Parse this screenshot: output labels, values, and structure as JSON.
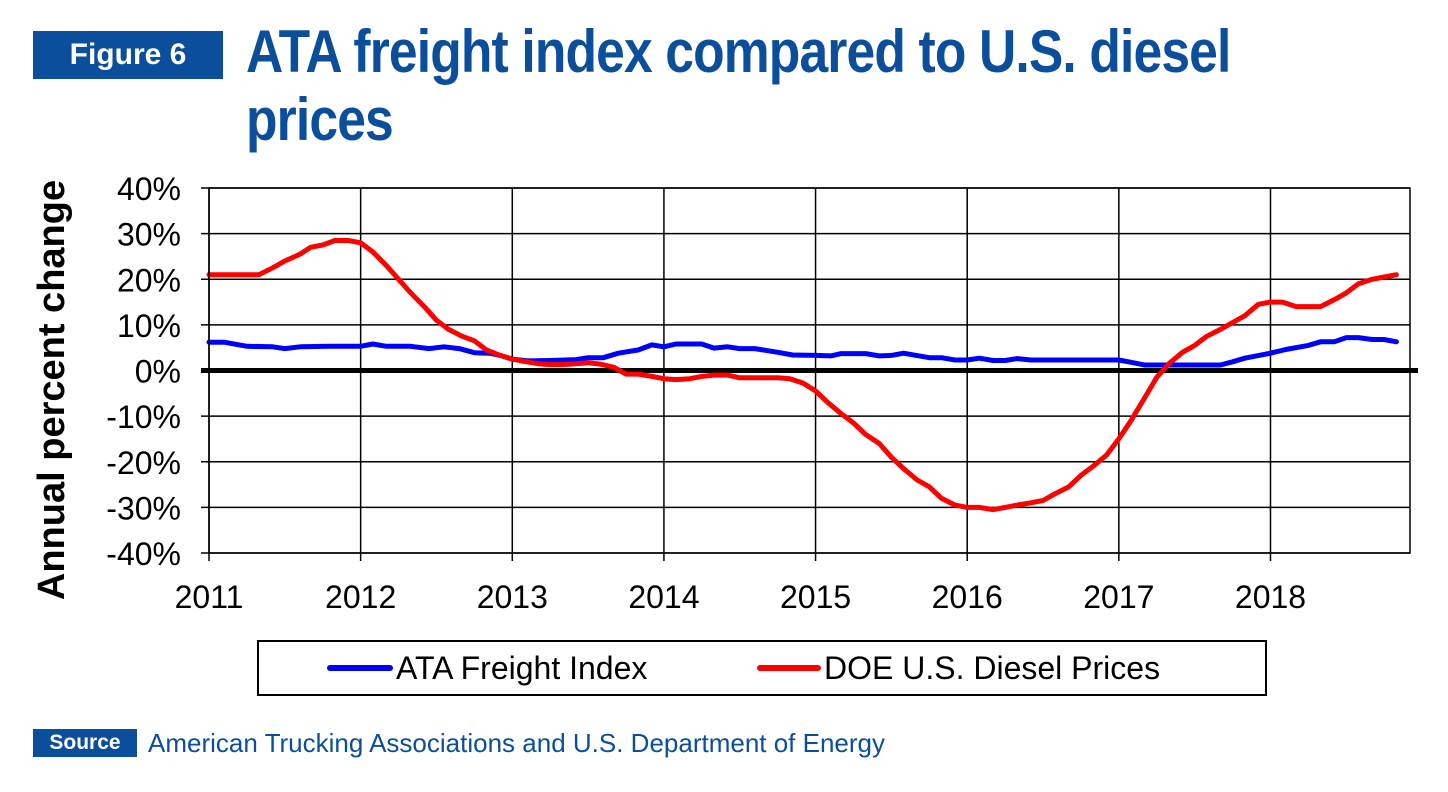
{
  "figure_label": "Figure 6",
  "title": "ATA freight index compared to U.S. diesel prices",
  "source_label": "Source",
  "source_text": "American Trucking Associations and U.S. Department of Energy",
  "colors": {
    "brand": "#0b4e9c",
    "freight": "#0000ff",
    "diesel": "#ff0000",
    "zero_line": "#000000",
    "grid": "#000000"
  },
  "chart_data": {
    "type": "line",
    "title": "",
    "xlabel": "",
    "ylabel": "Annual percent change",
    "xlim": [
      2011,
      2018.92
    ],
    "ylim": [
      -40,
      40
    ],
    "x_ticks": [
      2011,
      2012,
      2013,
      2014,
      2015,
      2016,
      2017,
      2018
    ],
    "x_tick_labels": [
      "2011",
      "2012",
      "2013",
      "2014",
      "2015",
      "2016",
      "2017",
      "2018"
    ],
    "y_ticks": [
      40,
      30,
      20,
      10,
      0,
      -10,
      -20,
      -30,
      -40
    ],
    "y_tick_labels": [
      "40%",
      "30%",
      "20%",
      "10%",
      "0%",
      "-10%",
      "-20%",
      "-30%",
      "-40%"
    ],
    "grid": true,
    "legend_position": "bottom",
    "series": [
      {
        "name": "ATA Freight Index",
        "color": "#0000ff",
        "points": [
          [
            2011.0,
            6.2
          ],
          [
            2011.1,
            6.2
          ],
          [
            2011.25,
            5.3
          ],
          [
            2011.42,
            5.2
          ],
          [
            2011.5,
            4.8
          ],
          [
            2011.6,
            5.2
          ],
          [
            2011.8,
            5.3
          ],
          [
            2012.0,
            5.3
          ],
          [
            2012.08,
            5.8
          ],
          [
            2012.17,
            5.3
          ],
          [
            2012.33,
            5.3
          ],
          [
            2012.45,
            4.8
          ],
          [
            2012.55,
            5.2
          ],
          [
            2012.65,
            4.8
          ],
          [
            2012.75,
            3.9
          ],
          [
            2012.85,
            3.8
          ],
          [
            2012.92,
            3.3
          ],
          [
            2013.0,
            2.5
          ],
          [
            2013.1,
            2.1
          ],
          [
            2013.25,
            2.2
          ],
          [
            2013.42,
            2.4
          ],
          [
            2013.5,
            2.8
          ],
          [
            2013.6,
            2.8
          ],
          [
            2013.7,
            3.8
          ],
          [
            2013.83,
            4.5
          ],
          [
            2013.92,
            5.6
          ],
          [
            2014.0,
            5.2
          ],
          [
            2014.08,
            5.8
          ],
          [
            2014.25,
            5.8
          ],
          [
            2014.33,
            4.9
          ],
          [
            2014.42,
            5.2
          ],
          [
            2014.5,
            4.8
          ],
          [
            2014.6,
            4.8
          ],
          [
            2014.75,
            4.0
          ],
          [
            2014.85,
            3.4
          ],
          [
            2015.0,
            3.3
          ],
          [
            2015.1,
            3.2
          ],
          [
            2015.17,
            3.7
          ],
          [
            2015.33,
            3.7
          ],
          [
            2015.42,
            3.2
          ],
          [
            2015.5,
            3.3
          ],
          [
            2015.58,
            3.8
          ],
          [
            2015.75,
            2.8
          ],
          [
            2015.83,
            2.8
          ],
          [
            2015.92,
            2.3
          ],
          [
            2016.0,
            2.3
          ],
          [
            2016.08,
            2.7
          ],
          [
            2016.17,
            2.2
          ],
          [
            2016.25,
            2.2
          ],
          [
            2016.33,
            2.6
          ],
          [
            2016.42,
            2.3
          ],
          [
            2016.58,
            2.3
          ],
          [
            2016.83,
            2.3
          ],
          [
            2017.0,
            2.3
          ],
          [
            2017.08,
            1.8
          ],
          [
            2017.17,
            1.2
          ],
          [
            2017.25,
            1.2
          ],
          [
            2017.5,
            1.2
          ],
          [
            2017.58,
            1.2
          ],
          [
            2017.67,
            1.2
          ],
          [
            2017.75,
            1.9
          ],
          [
            2017.83,
            2.7
          ],
          [
            2018.0,
            3.8
          ],
          [
            2018.1,
            4.6
          ],
          [
            2018.25,
            5.5
          ],
          [
            2018.33,
            6.3
          ],
          [
            2018.42,
            6.3
          ],
          [
            2018.5,
            7.2
          ],
          [
            2018.58,
            7.2
          ],
          [
            2018.67,
            6.8
          ],
          [
            2018.75,
            6.8
          ],
          [
            2018.83,
            6.3
          ]
        ]
      },
      {
        "name": "DOE U.S. Diesel Prices",
        "color": "#ff0000",
        "points": [
          [
            2011.0,
            21.0
          ],
          [
            2011.1,
            21.0
          ],
          [
            2011.25,
            21.0
          ],
          [
            2011.33,
            21.0
          ],
          [
            2011.42,
            22.5
          ],
          [
            2011.5,
            24.0
          ],
          [
            2011.6,
            25.5
          ],
          [
            2011.67,
            27.0
          ],
          [
            2011.75,
            27.5
          ],
          [
            2011.83,
            28.5
          ],
          [
            2011.92,
            28.5
          ],
          [
            2012.0,
            28.0
          ],
          [
            2012.08,
            26.0
          ],
          [
            2012.17,
            23.0
          ],
          [
            2012.25,
            20.0
          ],
          [
            2012.33,
            17.0
          ],
          [
            2012.42,
            14.0
          ],
          [
            2012.5,
            11.0
          ],
          [
            2012.58,
            9.0
          ],
          [
            2012.67,
            7.5
          ],
          [
            2012.75,
            6.5
          ],
          [
            2012.83,
            4.5
          ],
          [
            2012.92,
            3.3
          ],
          [
            2013.0,
            2.5
          ],
          [
            2013.08,
            2.0
          ],
          [
            2013.17,
            1.5
          ],
          [
            2013.25,
            1.3
          ],
          [
            2013.33,
            1.3
          ],
          [
            2013.42,
            1.5
          ],
          [
            2013.5,
            1.7
          ],
          [
            2013.58,
            1.4
          ],
          [
            2013.67,
            0.7
          ],
          [
            2013.75,
            -0.8
          ],
          [
            2013.83,
            -0.8
          ],
          [
            2013.92,
            -1.3
          ],
          [
            2014.0,
            -1.8
          ],
          [
            2014.08,
            -2.0
          ],
          [
            2014.17,
            -1.8
          ],
          [
            2014.25,
            -1.3
          ],
          [
            2014.33,
            -1.0
          ],
          [
            2014.42,
            -1.0
          ],
          [
            2014.5,
            -1.6
          ],
          [
            2014.58,
            -1.6
          ],
          [
            2014.67,
            -1.6
          ],
          [
            2014.75,
            -1.6
          ],
          [
            2014.83,
            -1.8
          ],
          [
            2014.92,
            -2.8
          ],
          [
            2015.0,
            -4.5
          ],
          [
            2015.08,
            -7.0
          ],
          [
            2015.17,
            -9.5
          ],
          [
            2015.25,
            -11.5
          ],
          [
            2015.33,
            -14.0
          ],
          [
            2015.42,
            -16.0
          ],
          [
            2015.5,
            -19.0
          ],
          [
            2015.58,
            -21.5
          ],
          [
            2015.67,
            -24.0
          ],
          [
            2015.75,
            -25.5
          ],
          [
            2015.83,
            -28.0
          ],
          [
            2015.92,
            -29.5
          ],
          [
            2016.0,
            -30.0
          ],
          [
            2016.08,
            -30.0
          ],
          [
            2016.17,
            -30.5
          ],
          [
            2016.25,
            -30.0
          ],
          [
            2016.33,
            -29.5
          ],
          [
            2016.42,
            -29.0
          ],
          [
            2016.5,
            -28.5
          ],
          [
            2016.58,
            -27.0
          ],
          [
            2016.67,
            -25.5
          ],
          [
            2016.75,
            -23.0
          ],
          [
            2016.83,
            -21.0
          ],
          [
            2016.92,
            -18.5
          ],
          [
            2017.0,
            -15.0
          ],
          [
            2017.08,
            -11.0
          ],
          [
            2017.17,
            -6.0
          ],
          [
            2017.25,
            -1.5
          ],
          [
            2017.33,
            1.5
          ],
          [
            2017.42,
            4.0
          ],
          [
            2017.5,
            5.5
          ],
          [
            2017.58,
            7.5
          ],
          [
            2017.67,
            9.0
          ],
          [
            2017.75,
            10.5
          ],
          [
            2017.83,
            12.0
          ],
          [
            2017.92,
            14.5
          ],
          [
            2018.0,
            15.0
          ],
          [
            2018.08,
            15.0
          ],
          [
            2018.17,
            14.0
          ],
          [
            2018.25,
            14.0
          ],
          [
            2018.33,
            14.0
          ],
          [
            2018.42,
            15.5
          ],
          [
            2018.5,
            17.0
          ],
          [
            2018.58,
            19.0
          ],
          [
            2018.67,
            20.0
          ],
          [
            2018.75,
            20.5
          ],
          [
            2018.83,
            21.0
          ]
        ]
      }
    ]
  }
}
